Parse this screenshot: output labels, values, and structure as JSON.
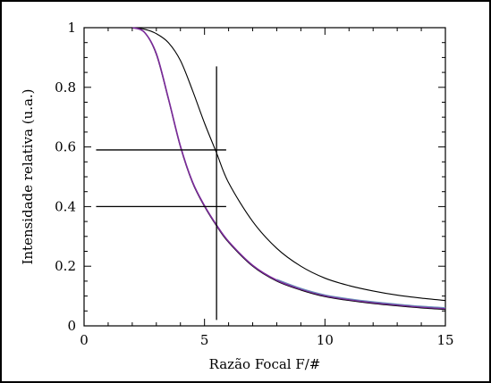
{
  "chart_data": {
    "type": "line",
    "title": "",
    "xlabel": "Razão Focal F/#",
    "ylabel": "Intensidade relativa (u.a.)",
    "xlim": [
      0,
      15
    ],
    "ylim": [
      0,
      1
    ],
    "xticks": [
      0,
      5,
      10,
      15
    ],
    "yticks": [
      0,
      0.2,
      0.4,
      0.6,
      0.8,
      1
    ],
    "xtick_labels": [
      "0",
      "5",
      "10",
      "15"
    ],
    "ytick_labels": [
      "0",
      "0.2",
      "0.4",
      "0.6",
      "0.8",
      "1"
    ],
    "grid": false,
    "legend": "none",
    "series": [
      {
        "color": "#000000",
        "x": [
          2,
          2.5,
          3,
          3.5,
          4,
          4.5,
          5,
          5.5,
          6,
          7,
          8,
          9,
          10,
          11,
          12,
          13,
          14,
          15
        ],
        "y": [
          1.0,
          0.995,
          0.98,
          0.95,
          0.89,
          0.79,
          0.68,
          0.58,
          0.48,
          0.35,
          0.26,
          0.2,
          0.16,
          0.135,
          0.117,
          0.103,
          0.093,
          0.085
        ]
      },
      {
        "color": "#000000",
        "x": [
          2,
          2.5,
          3,
          3.5,
          4,
          4.5,
          5,
          5.5,
          6,
          7,
          8,
          9,
          10,
          11,
          12,
          13,
          14,
          15
        ],
        "y": [
          1.0,
          0.985,
          0.91,
          0.76,
          0.6,
          0.48,
          0.4,
          0.335,
          0.28,
          0.2,
          0.15,
          0.12,
          0.098,
          0.085,
          0.075,
          0.067,
          0.06,
          0.055
        ]
      },
      {
        "color": "#7a2a9a",
        "x": [
          2,
          2.5,
          3,
          3.5,
          4,
          4.5,
          5,
          5.5,
          6,
          7,
          8,
          9,
          10,
          11,
          12,
          13,
          14,
          15
        ],
        "y": [
          1.0,
          0.985,
          0.913,
          0.763,
          0.603,
          0.483,
          0.403,
          0.338,
          0.283,
          0.203,
          0.153,
          0.123,
          0.101,
          0.088,
          0.078,
          0.07,
          0.063,
          0.058
        ]
      },
      {
        "color": "#6a8fb8",
        "x": [
          8,
          9,
          10,
          11,
          12,
          13,
          14,
          15
        ],
        "y": [
          0.156,
          0.126,
          0.104,
          0.091,
          0.081,
          0.073,
          0.066,
          0.061
        ]
      }
    ],
    "annotations": [
      {
        "type": "vline",
        "x": 5.5,
        "y_range": [
          0.02,
          0.87
        ]
      },
      {
        "type": "hline",
        "y": 0.59,
        "x_range": [
          0.5,
          5.9
        ]
      },
      {
        "type": "hline",
        "y": 0.4,
        "x_range": [
          0.5,
          5.9
        ]
      }
    ]
  }
}
